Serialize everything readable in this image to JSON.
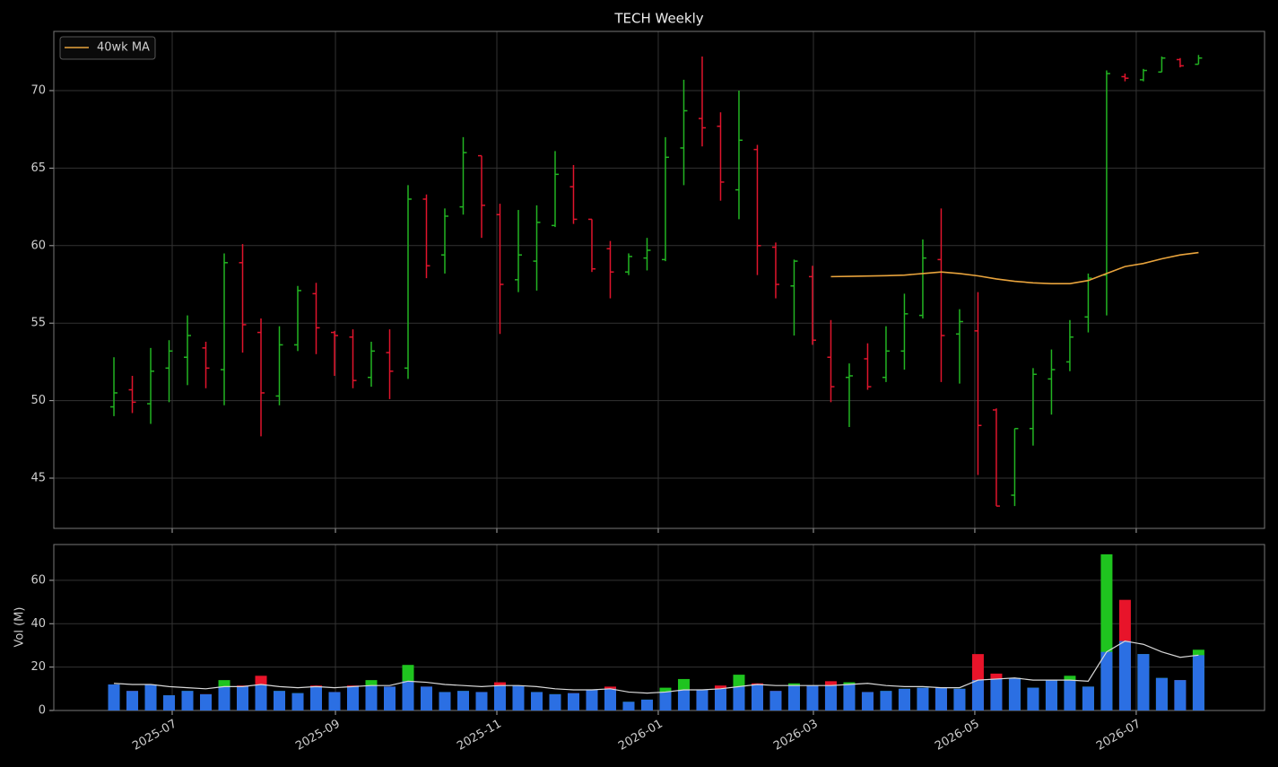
{
  "chart_data": [
    {
      "type": "ohlc",
      "title": "TECH Weekly",
      "x": [
        0,
        1,
        2,
        3,
        4,
        5,
        6,
        7,
        8,
        9,
        10,
        11,
        12,
        13,
        14,
        15,
        16,
        17,
        18,
        19,
        20,
        21,
        22,
        23,
        24,
        25,
        26,
        27,
        28,
        29,
        30,
        31,
        32,
        33,
        34,
        35,
        36,
        37,
        38,
        39,
        40,
        41,
        42,
        43,
        44,
        45,
        46,
        47,
        48,
        49,
        50,
        51,
        52,
        53,
        54,
        55,
        56,
        57,
        58,
        59
      ],
      "open": [
        49.6,
        50.7,
        49.8,
        52.1,
        52.8,
        53.4,
        52.0,
        58.9,
        54.4,
        50.3,
        53.6,
        56.9,
        54.4,
        54.1,
        51.5,
        53.1,
        52.1,
        63.0,
        59.4,
        62.5,
        65.8,
        62.0,
        57.8,
        59.0,
        61.3,
        63.8,
        61.7,
        59.8,
        58.3,
        59.2,
        59.1,
        66.3,
        68.2,
        67.7,
        63.6,
        66.2,
        59.9,
        57.4,
        58.0,
        52.8,
        51.5,
        52.7,
        51.5,
        53.2,
        55.5,
        59.1,
        54.3,
        54.5,
        49.4,
        43.9,
        48.2,
        51.4,
        52.5,
        55.4,
        58.1,
        70.9,
        70.7,
        71.2,
        72.0,
        71.7
      ],
      "high": [
        52.8,
        51.6,
        53.4,
        53.9,
        55.5,
        53.8,
        59.5,
        60.1,
        55.3,
        54.8,
        57.4,
        57.6,
        54.5,
        54.6,
        53.8,
        54.6,
        63.9,
        63.3,
        62.4,
        67.0,
        65.8,
        62.7,
        62.3,
        62.6,
        66.1,
        65.2,
        61.7,
        60.3,
        59.5,
        60.5,
        67.0,
        70.7,
        72.2,
        68.6,
        70.0,
        66.5,
        60.2,
        59.1,
        58.7,
        55.2,
        52.4,
        53.7,
        54.8,
        56.9,
        60.4,
        62.4,
        55.9,
        57.0,
        49.5,
        48.2,
        52.1,
        53.3,
        55.2,
        58.2,
        71.3,
        71.1,
        71.4,
        72.2,
        72.1,
        72.3
      ],
      "low": [
        49.0,
        49.2,
        48.5,
        49.9,
        51.0,
        50.8,
        49.7,
        53.1,
        47.7,
        49.7,
        53.2,
        53.0,
        51.6,
        50.8,
        50.9,
        50.1,
        51.4,
        57.9,
        58.2,
        62.0,
        60.5,
        54.3,
        57.0,
        57.1,
        61.2,
        61.4,
        58.3,
        56.6,
        58.1,
        58.4,
        59.0,
        63.9,
        66.4,
        62.9,
        61.7,
        58.1,
        56.6,
        54.2,
        53.6,
        49.9,
        48.3,
        50.7,
        51.2,
        52.0,
        55.3,
        51.2,
        51.1,
        45.2,
        43.2,
        43.2,
        47.1,
        49.1,
        51.9,
        54.4,
        55.5,
        70.6,
        70.6,
        71.2,
        71.5,
        71.7
      ],
      "close": [
        50.5,
        49.9,
        51.9,
        53.2,
        54.2,
        52.1,
        58.9,
        54.9,
        50.5,
        53.6,
        57.1,
        54.7,
        54.2,
        51.3,
        53.2,
        51.9,
        63.0,
        58.7,
        61.9,
        66.0,
        62.6,
        57.5,
        59.4,
        61.5,
        64.6,
        61.7,
        58.5,
        58.3,
        59.3,
        59.7,
        65.7,
        68.7,
        67.6,
        64.1,
        66.8,
        60.0,
        57.5,
        59.0,
        53.9,
        50.9,
        51.6,
        50.9,
        53.2,
        55.6,
        59.2,
        54.2,
        55.1,
        48.4,
        43.2,
        48.2,
        51.7,
        52.0,
        54.1,
        57.9,
        71.1,
        70.8,
        71.3,
        72.1,
        71.6,
        72.1
      ],
      "up_color": "#22b422",
      "down_color": "#e0142c",
      "series": [
        {
          "name": "40wk MA",
          "color": "#e8a33c",
          "values": [
            null,
            null,
            null,
            null,
            null,
            null,
            null,
            null,
            null,
            null,
            null,
            null,
            null,
            null,
            null,
            null,
            null,
            null,
            null,
            null,
            null,
            null,
            null,
            null,
            null,
            null,
            null,
            null,
            null,
            null,
            null,
            null,
            null,
            null,
            null,
            null,
            null,
            null,
            null,
            58.0,
            58.02,
            58.04,
            58.06,
            58.1,
            58.2,
            58.3,
            58.2,
            58.05,
            57.85,
            57.7,
            57.6,
            57.55,
            57.55,
            57.75,
            58.2,
            58.65,
            58.85,
            59.15,
            59.4,
            59.55
          ]
        }
      ],
      "xlim": [
        -3.27,
        62.59
      ],
      "ylim": [
        41.76,
        73.82
      ],
      "yticks": [
        45,
        50,
        55,
        60,
        65,
        70
      ],
      "grid": true,
      "legend": "upper left"
    },
    {
      "type": "bar",
      "ylabel": "Vol (M)",
      "x": [
        0,
        1,
        2,
        3,
        4,
        5,
        6,
        7,
        8,
        9,
        10,
        11,
        12,
        13,
        14,
        15,
        16,
        17,
        18,
        19,
        20,
        21,
        22,
        23,
        24,
        25,
        26,
        27,
        28,
        29,
        30,
        31,
        32,
        33,
        34,
        35,
        36,
        37,
        38,
        39,
        40,
        41,
        42,
        43,
        44,
        45,
        46,
        47,
        48,
        49,
        50,
        51,
        52,
        53,
        54,
        55,
        56,
        57,
        58,
        59
      ],
      "values": [
        12,
        9,
        12,
        7,
        9,
        7.5,
        14,
        11.5,
        16,
        9,
        8,
        11.5,
        8.5,
        11.5,
        14,
        11,
        21,
        11,
        8.5,
        9,
        8.5,
        13,
        11.5,
        8.5,
        7.5,
        8,
        9.5,
        11,
        4,
        5,
        10.5,
        14.5,
        9.5,
        11.5,
        16.5,
        12.5,
        9,
        12.5,
        11.5,
        13.5,
        13,
        8.5,
        9,
        10,
        10.5,
        10.5,
        10,
        26,
        17,
        15,
        10.5,
        14,
        16,
        11,
        72,
        51,
        26,
        15,
        14,
        28
      ],
      "up_color": "#1fc41f",
      "down_color": "#e8142a",
      "base_color": "#2b6fe3",
      "ma": {
        "color": "#d8d8d8",
        "values": [
          12.5,
          12,
          12,
          11,
          10.5,
          10,
          11,
          11,
          12,
          11,
          10.5,
          11,
          10.5,
          11,
          11.5,
          11.5,
          13.5,
          13,
          12,
          11.5,
          11,
          11.5,
          11.5,
          11,
          10,
          9.5,
          9.5,
          10,
          8.5,
          8,
          8.5,
          9.5,
          9.5,
          10,
          11,
          12,
          11.5,
          11.5,
          11.5,
          11.5,
          12,
          12.5,
          11.5,
          11,
          11,
          10.5,
          10.5,
          14,
          14.5,
          15,
          14,
          14,
          14,
          13.5,
          27,
          32,
          30.5,
          27,
          24.5,
          25.5
        ]
      },
      "xlim": [
        -3.27,
        62.59
      ],
      "ylim": [
        0,
        76.5
      ],
      "yticks": [
        0,
        20,
        40,
        60
      ],
      "xticks": [
        {
          "value": 3.17,
          "label": "2025-07"
        },
        {
          "value": 12.05,
          "label": "2025-09"
        },
        {
          "value": 20.83,
          "label": "2025-11"
        },
        {
          "value": 29.61,
          "label": "2026-01"
        },
        {
          "value": 38.05,
          "label": "2026-03"
        },
        {
          "value": 46.83,
          "label": "2026-05"
        },
        {
          "value": 55.61,
          "label": "2026-07"
        }
      ],
      "grid": true
    }
  ]
}
